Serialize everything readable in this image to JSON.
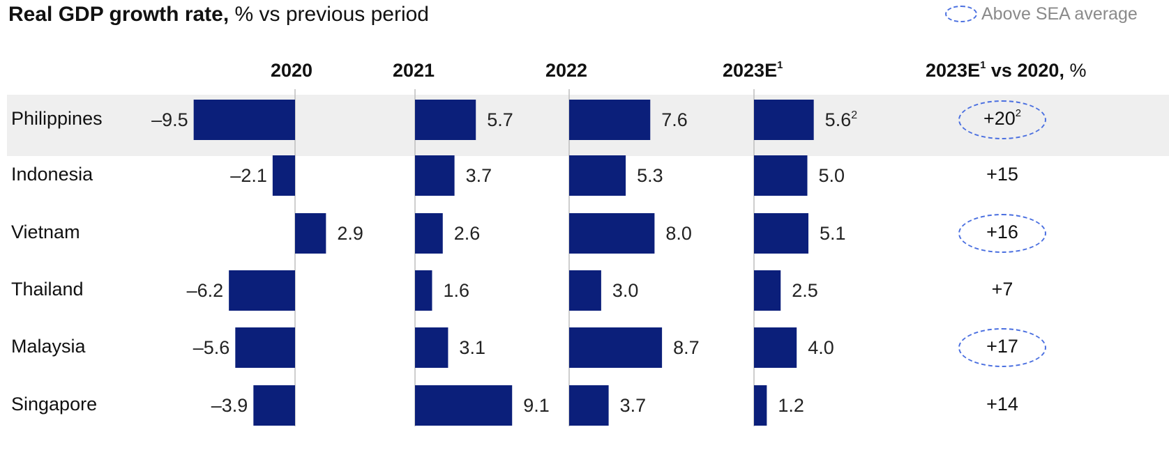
{
  "title": {
    "bold": "Real GDP growth rate,",
    "rest": " % vs previous period"
  },
  "legend": {
    "label": "Above SEA average"
  },
  "columns": [
    {
      "label": "2020",
      "sup": ""
    },
    {
      "label": "2021",
      "sup": ""
    },
    {
      "label": "2022",
      "sup": ""
    },
    {
      "label": "2023E",
      "sup": "1"
    }
  ],
  "change_header": {
    "label": "2023E",
    "sup": "1",
    "mid": " vs 2020,",
    "unit": " %"
  },
  "colors": {
    "bar": "#0b1f7a",
    "axis": "#bdbdbd",
    "highlight_row": "#efefef",
    "oval": "#4a6fe0"
  },
  "chart_data": {
    "type": "bar",
    "orientation": "horizontal",
    "categories": [
      "Philippines",
      "Indonesia",
      "Vietnam",
      "Thailand",
      "Malaysia",
      "Singapore"
    ],
    "series": [
      {
        "name": "2020",
        "values": [
          -9.5,
          -2.1,
          2.9,
          -6.2,
          -5.6,
          -3.9
        ],
        "labels": [
          "–9.5",
          "–2.1",
          "2.9",
          "–6.2",
          "–5.6",
          "–3.9"
        ]
      },
      {
        "name": "2021",
        "values": [
          5.7,
          3.7,
          2.6,
          1.6,
          3.1,
          9.1
        ],
        "labels": [
          "5.7",
          "3.7",
          "2.6",
          "1.6",
          "3.1",
          "9.1"
        ]
      },
      {
        "name": "2022",
        "values": [
          7.6,
          5.3,
          8.0,
          3.0,
          8.7,
          3.7
        ],
        "labels": [
          "7.6",
          "5.3",
          "8.0",
          "3.0",
          "8.7",
          "3.7"
        ]
      },
      {
        "name": "2023E",
        "values": [
          5.6,
          5.0,
          5.1,
          2.5,
          4.0,
          1.2
        ],
        "labels": [
          "5.6",
          "5.0",
          "5.1",
          "2.5",
          "4.0",
          "1.2"
        ],
        "label_sups": [
          "2",
          "",
          "",
          "",
          "",
          ""
        ]
      }
    ],
    "change_vs_2020": [
      {
        "value": "+20",
        "sup": "2",
        "above_sea_average": true
      },
      {
        "value": "+15",
        "sup": "",
        "above_sea_average": false
      },
      {
        "value": "+16",
        "sup": "",
        "above_sea_average": true
      },
      {
        "value": "+7",
        "sup": "",
        "above_sea_average": false
      },
      {
        "value": "+17",
        "sup": "",
        "above_sea_average": true
      },
      {
        "value": "+14",
        "sup": "",
        "above_sea_average": false
      }
    ],
    "highlighted_category": "Philippines"
  }
}
